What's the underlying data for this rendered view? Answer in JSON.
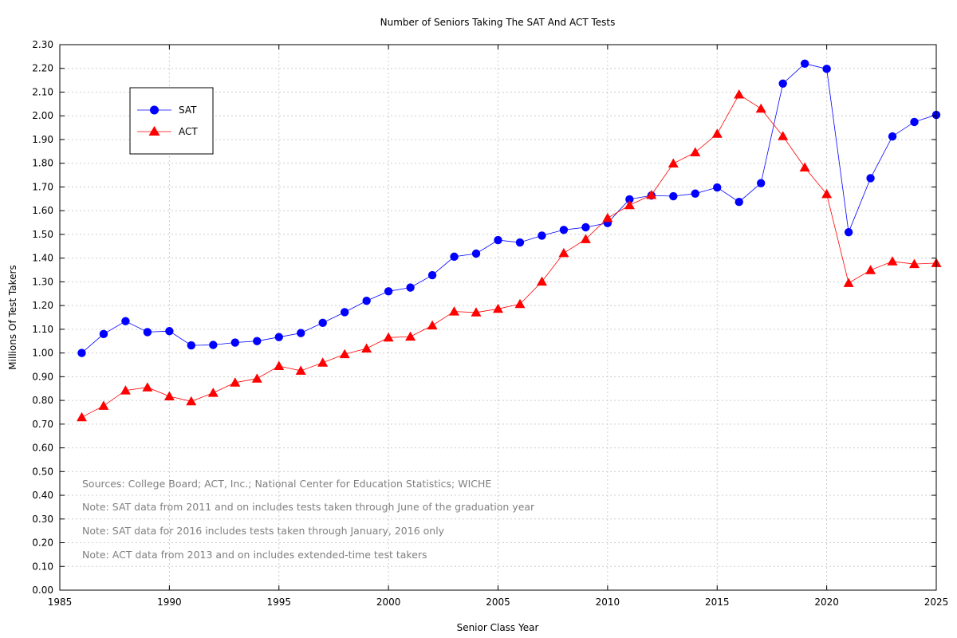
{
  "chart_data": {
    "type": "line",
    "title": "Number of Seniors Taking The SAT And ACT Tests",
    "xlabel": "Senior Class Year",
    "ylabel": "Millions Of Test Takers",
    "xlim": [
      1985,
      2025
    ],
    "ylim": [
      0,
      2.3
    ],
    "xticks": [
      "1985",
      "1990",
      "1995",
      "2000",
      "2005",
      "2010",
      "2015",
      "2020",
      "2025"
    ],
    "yticks": [
      "0.00",
      "0.10",
      "0.20",
      "0.30",
      "0.40",
      "0.50",
      "0.60",
      "0.70",
      "0.80",
      "0.90",
      "1.00",
      "1.10",
      "1.20",
      "1.30",
      "1.40",
      "1.50",
      "1.60",
      "1.70",
      "1.80",
      "1.90",
      "2.00",
      "2.10",
      "2.20",
      "2.30"
    ],
    "grid": true,
    "legend": "top-left",
    "x": [
      1986,
      1987,
      1988,
      1989,
      1990,
      1991,
      1992,
      1993,
      1994,
      1995,
      1996,
      1997,
      1998,
      1999,
      2000,
      2001,
      2002,
      2003,
      2004,
      2005,
      2006,
      2007,
      2008,
      2009,
      2010,
      2011,
      2012,
      2013,
      2014,
      2015,
      2016,
      2017,
      2018,
      2019,
      2020,
      2021,
      2022,
      2023,
      2024,
      2025
    ],
    "series": [
      {
        "name": "SAT",
        "color": "#0000ff",
        "marker": "circle",
        "values": [
          1.0,
          1.08,
          1.134,
          1.088,
          1.092,
          1.032,
          1.034,
          1.044,
          1.05,
          1.067,
          1.084,
          1.127,
          1.172,
          1.22,
          1.26,
          1.276,
          1.328,
          1.406,
          1.419,
          1.476,
          1.466,
          1.495,
          1.519,
          1.53,
          1.548,
          1.648,
          1.664,
          1.661,
          1.672,
          1.698,
          1.637,
          1.716,
          2.136,
          2.22,
          2.198,
          1.509,
          1.737,
          1.913,
          1.974,
          2.004
        ]
      },
      {
        "name": "ACT",
        "color": "#ff0000",
        "marker": "triangle",
        "values": [
          0.729,
          0.777,
          0.842,
          0.855,
          0.817,
          0.796,
          0.832,
          0.875,
          0.892,
          0.945,
          0.925,
          0.959,
          0.995,
          1.019,
          1.065,
          1.069,
          1.116,
          1.175,
          1.171,
          1.186,
          1.206,
          1.301,
          1.421,
          1.48,
          1.569,
          1.623,
          1.666,
          1.799,
          1.846,
          1.924,
          2.09,
          2.03,
          1.914,
          1.782,
          1.67,
          1.295,
          1.349,
          1.386,
          1.375,
          1.379
        ]
      }
    ],
    "annotations": [
      "Sources: College Board; ACT, Inc.; National Center for Education Statistics; WICHE",
      "Note: SAT data from 2011 and on includes tests taken through June of the graduation year",
      "Note: SAT data for 2016 includes tests taken through January, 2016 only",
      "Note: ACT data from 2013 and on includes extended-time test takers"
    ]
  }
}
